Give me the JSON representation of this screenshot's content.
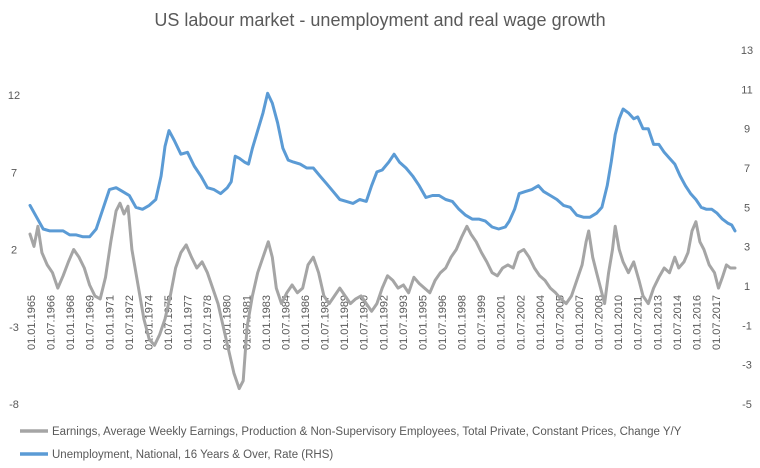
{
  "chart_data": {
    "type": "line",
    "title": "US labour market - unemployment and real wage growth",
    "xlabel": "",
    "ylabel_left": "",
    "ylabel_right": "",
    "x_ticks": [
      "01.01.1965",
      "01.07.1966",
      "01.01.1968",
      "01.07.1969",
      "01.01.1971",
      "01.07.1972",
      "01.01.1974",
      "01.07.1975",
      "01.01.1977",
      "01.07.1978",
      "01.01.1980",
      "01.07.1981",
      "01.01.1983",
      "01.07.1984",
      "01.01.1986",
      "01.07.1987",
      "01.01.1989",
      "01.07.1990",
      "01.01.1992",
      "01.07.1993",
      "01.01.1995",
      "01.07.1996",
      "01.01.1998",
      "01.07.1999",
      "01.01.2001",
      "01.07.2002",
      "01.01.2004",
      "01.07.2005",
      "01.01.2007",
      "01.07.2008",
      "01.01.2010",
      "01.07.2011",
      "01.01.2013",
      "01.07.2014",
      "01.01.2016",
      "01.07.2017"
    ],
    "y_left": {
      "ticks": [
        12,
        7,
        2,
        -3,
        -8
      ],
      "range": [
        -8,
        12
      ]
    },
    "y_right": {
      "ticks": [
        13,
        11,
        9,
        7,
        5,
        3,
        1,
        -1,
        -3,
        -5
      ],
      "range": [
        -5,
        13
      ]
    },
    "x_range": [
      1965.0,
      2018.25
    ],
    "legend_position": "bottom",
    "series": [
      {
        "name": "Earnings, Average Weekly Earnings, Production & Non-Supervisory Employees, Total Private, Constant Prices, Change Y/Y",
        "axis": "left",
        "color": "#a5a5a5",
        "points": [
          [
            1965.0,
            3.0
          ],
          [
            1965.3,
            2.2
          ],
          [
            1965.6,
            3.5
          ],
          [
            1965.9,
            1.8
          ],
          [
            1966.3,
            1.0
          ],
          [
            1966.7,
            0.5
          ],
          [
            1967.1,
            -0.5
          ],
          [
            1967.5,
            0.3
          ],
          [
            1967.9,
            1.2
          ],
          [
            1968.3,
            2.0
          ],
          [
            1968.7,
            1.5
          ],
          [
            1969.1,
            0.8
          ],
          [
            1969.5,
            -0.3
          ],
          [
            1969.9,
            -1.0
          ],
          [
            1970.3,
            -1.2
          ],
          [
            1970.7,
            0.2
          ],
          [
            1971.1,
            2.5
          ],
          [
            1971.5,
            4.5
          ],
          [
            1971.8,
            5.0
          ],
          [
            1972.1,
            4.3
          ],
          [
            1972.4,
            4.8
          ],
          [
            1972.7,
            2.0
          ],
          [
            1973.0,
            0.5
          ],
          [
            1973.3,
            -1.0
          ],
          [
            1973.6,
            -2.5
          ],
          [
            1974.0,
            -3.8
          ],
          [
            1974.4,
            -4.2
          ],
          [
            1974.8,
            -3.5
          ],
          [
            1975.2,
            -2.5
          ],
          [
            1975.6,
            -1.0
          ],
          [
            1976.0,
            0.8
          ],
          [
            1976.4,
            1.8
          ],
          [
            1976.8,
            2.3
          ],
          [
            1977.2,
            1.5
          ],
          [
            1977.6,
            0.8
          ],
          [
            1978.0,
            1.2
          ],
          [
            1978.4,
            0.5
          ],
          [
            1978.8,
            -0.5
          ],
          [
            1979.2,
            -1.5
          ],
          [
            1979.6,
            -3.0
          ],
          [
            1980.0,
            -4.5
          ],
          [
            1980.4,
            -6.0
          ],
          [
            1980.8,
            -7.0
          ],
          [
            1981.1,
            -6.5
          ],
          [
            1981.4,
            -3.0
          ],
          [
            1981.8,
            -1.0
          ],
          [
            1982.2,
            0.5
          ],
          [
            1982.6,
            1.5
          ],
          [
            1983.0,
            2.5
          ],
          [
            1983.3,
            1.5
          ],
          [
            1983.6,
            -0.5
          ],
          [
            1984.0,
            -1.5
          ],
          [
            1984.4,
            -0.8
          ],
          [
            1984.8,
            -0.3
          ],
          [
            1985.2,
            -0.8
          ],
          [
            1985.6,
            -0.5
          ],
          [
            1986.0,
            1.0
          ],
          [
            1986.4,
            1.5
          ],
          [
            1986.8,
            0.5
          ],
          [
            1987.2,
            -1.0
          ],
          [
            1987.6,
            -1.5
          ],
          [
            1988.0,
            -1.0
          ],
          [
            1988.4,
            -0.5
          ],
          [
            1988.8,
            -1.0
          ],
          [
            1989.2,
            -1.5
          ],
          [
            1989.6,
            -1.2
          ],
          [
            1990.0,
            -1.0
          ],
          [
            1990.4,
            -1.5
          ],
          [
            1990.8,
            -2.0
          ],
          [
            1991.2,
            -1.5
          ],
          [
            1991.6,
            -0.5
          ],
          [
            1992.0,
            0.3
          ],
          [
            1992.4,
            0.0
          ],
          [
            1992.8,
            -0.5
          ],
          [
            1993.2,
            -0.3
          ],
          [
            1993.6,
            -0.8
          ],
          [
            1994.0,
            0.2
          ],
          [
            1994.4,
            -0.2
          ],
          [
            1994.8,
            -0.5
          ],
          [
            1995.2,
            -0.8
          ],
          [
            1995.6,
            0.0
          ],
          [
            1996.0,
            0.5
          ],
          [
            1996.4,
            0.8
          ],
          [
            1996.8,
            1.5
          ],
          [
            1997.2,
            2.0
          ],
          [
            1997.6,
            2.8
          ],
          [
            1998.0,
            3.5
          ],
          [
            1998.3,
            3.0
          ],
          [
            1998.7,
            2.5
          ],
          [
            1999.1,
            1.8
          ],
          [
            1999.5,
            1.2
          ],
          [
            1999.9,
            0.5
          ],
          [
            2000.3,
            0.3
          ],
          [
            2000.7,
            0.8
          ],
          [
            2001.1,
            1.0
          ],
          [
            2001.5,
            0.8
          ],
          [
            2001.9,
            1.8
          ],
          [
            2002.3,
            2.0
          ],
          [
            2002.7,
            1.5
          ],
          [
            2003.1,
            0.8
          ],
          [
            2003.5,
            0.3
          ],
          [
            2003.9,
            0.0
          ],
          [
            2004.3,
            -0.5
          ],
          [
            2004.7,
            -0.8
          ],
          [
            2005.1,
            -1.2
          ],
          [
            2005.5,
            -1.5
          ],
          [
            2005.9,
            -1.0
          ],
          [
            2006.3,
            0.0
          ],
          [
            2006.7,
            1.0
          ],
          [
            2007.0,
            2.5
          ],
          [
            2007.2,
            3.2
          ],
          [
            2007.5,
            1.5
          ],
          [
            2007.8,
            0.5
          ],
          [
            2008.1,
            -0.5
          ],
          [
            2008.4,
            -1.5
          ],
          [
            2008.7,
            0.5
          ],
          [
            2009.0,
            2.0
          ],
          [
            2009.2,
            3.5
          ],
          [
            2009.5,
            2.0
          ],
          [
            2009.8,
            1.2
          ],
          [
            2010.2,
            0.5
          ],
          [
            2010.6,
            1.2
          ],
          [
            2011.0,
            0.0
          ],
          [
            2011.3,
            -1.0
          ],
          [
            2011.7,
            -1.5
          ],
          [
            2012.1,
            -0.5
          ],
          [
            2012.5,
            0.2
          ],
          [
            2012.9,
            0.8
          ],
          [
            2013.3,
            0.5
          ],
          [
            2013.7,
            1.5
          ],
          [
            2014.0,
            0.8
          ],
          [
            2014.4,
            1.2
          ],
          [
            2014.7,
            1.8
          ],
          [
            2015.0,
            3.2
          ],
          [
            2015.3,
            3.8
          ],
          [
            2015.6,
            2.5
          ],
          [
            2015.9,
            2.0
          ],
          [
            2016.3,
            1.0
          ],
          [
            2016.7,
            0.5
          ],
          [
            2017.0,
            -0.5
          ],
          [
            2017.3,
            0.2
          ],
          [
            2017.6,
            1.0
          ],
          [
            2017.9,
            0.8
          ],
          [
            2018.25,
            0.8
          ]
        ]
      },
      {
        "name": "Unemployment, National, 16 Years & Over, Rate (RHS)",
        "axis": "right",
        "color": "#5b9bd5",
        "points": [
          [
            1965.0,
            5.1
          ],
          [
            1965.5,
            4.5
          ],
          [
            1966.0,
            3.9
          ],
          [
            1966.5,
            3.8
          ],
          [
            1967.0,
            3.8
          ],
          [
            1967.5,
            3.8
          ],
          [
            1968.0,
            3.6
          ],
          [
            1968.5,
            3.6
          ],
          [
            1969.0,
            3.5
          ],
          [
            1969.5,
            3.5
          ],
          [
            1970.0,
            3.9
          ],
          [
            1970.5,
            4.9
          ],
          [
            1971.0,
            5.9
          ],
          [
            1971.5,
            6.0
          ],
          [
            1972.0,
            5.8
          ],
          [
            1972.5,
            5.6
          ],
          [
            1973.0,
            5.0
          ],
          [
            1973.5,
            4.9
          ],
          [
            1974.0,
            5.1
          ],
          [
            1974.5,
            5.4
          ],
          [
            1974.9,
            6.6
          ],
          [
            1975.2,
            8.1
          ],
          [
            1975.5,
            8.9
          ],
          [
            1975.9,
            8.4
          ],
          [
            1976.4,
            7.7
          ],
          [
            1976.9,
            7.8
          ],
          [
            1977.4,
            7.1
          ],
          [
            1977.9,
            6.6
          ],
          [
            1978.4,
            6.0
          ],
          [
            1978.9,
            5.9
          ],
          [
            1979.4,
            5.7
          ],
          [
            1979.9,
            6.0
          ],
          [
            1980.2,
            6.3
          ],
          [
            1980.5,
            7.6
          ],
          [
            1980.8,
            7.5
          ],
          [
            1981.2,
            7.3
          ],
          [
            1981.5,
            7.2
          ],
          [
            1981.8,
            8.0
          ],
          [
            1982.2,
            8.9
          ],
          [
            1982.6,
            9.8
          ],
          [
            1982.95,
            10.8
          ],
          [
            1983.3,
            10.3
          ],
          [
            1983.7,
            9.3
          ],
          [
            1984.1,
            8.0
          ],
          [
            1984.5,
            7.4
          ],
          [
            1984.9,
            7.3
          ],
          [
            1985.4,
            7.2
          ],
          [
            1985.9,
            7.0
          ],
          [
            1986.4,
            7.0
          ],
          [
            1986.9,
            6.6
          ],
          [
            1987.4,
            6.2
          ],
          [
            1987.9,
            5.8
          ],
          [
            1988.4,
            5.4
          ],
          [
            1988.9,
            5.3
          ],
          [
            1989.4,
            5.2
          ],
          [
            1989.9,
            5.4
          ],
          [
            1990.4,
            5.3
          ],
          [
            1990.8,
            6.1
          ],
          [
            1991.2,
            6.8
          ],
          [
            1991.6,
            6.9
          ],
          [
            1992.1,
            7.3
          ],
          [
            1992.5,
            7.7
          ],
          [
            1992.9,
            7.3
          ],
          [
            1993.4,
            7.0
          ],
          [
            1993.9,
            6.6
          ],
          [
            1994.4,
            6.1
          ],
          [
            1994.9,
            5.5
          ],
          [
            1995.4,
            5.6
          ],
          [
            1995.9,
            5.6
          ],
          [
            1996.4,
            5.4
          ],
          [
            1996.9,
            5.3
          ],
          [
            1997.4,
            4.9
          ],
          [
            1997.9,
            4.6
          ],
          [
            1998.4,
            4.4
          ],
          [
            1998.9,
            4.4
          ],
          [
            1999.4,
            4.3
          ],
          [
            1999.9,
            4.0
          ],
          [
            2000.4,
            3.9
          ],
          [
            2000.9,
            4.0
          ],
          [
            2001.2,
            4.3
          ],
          [
            2001.6,
            4.9
          ],
          [
            2001.95,
            5.7
          ],
          [
            2002.4,
            5.8
          ],
          [
            2002.9,
            5.9
          ],
          [
            2003.4,
            6.1
          ],
          [
            2003.8,
            5.8
          ],
          [
            2004.3,
            5.6
          ],
          [
            2004.8,
            5.4
          ],
          [
            2005.3,
            5.1
          ],
          [
            2005.8,
            5.0
          ],
          [
            2006.3,
            4.6
          ],
          [
            2006.8,
            4.5
          ],
          [
            2007.3,
            4.5
          ],
          [
            2007.8,
            4.7
          ],
          [
            2008.2,
            5.0
          ],
          [
            2008.6,
            6.1
          ],
          [
            2008.9,
            7.3
          ],
          [
            2009.2,
            8.7
          ],
          [
            2009.5,
            9.5
          ],
          [
            2009.8,
            10.0
          ],
          [
            2010.2,
            9.8
          ],
          [
            2010.6,
            9.5
          ],
          [
            2010.9,
            9.6
          ],
          [
            2011.3,
            9.0
          ],
          [
            2011.7,
            9.0
          ],
          [
            2012.1,
            8.2
          ],
          [
            2012.5,
            8.2
          ],
          [
            2012.9,
            7.8
          ],
          [
            2013.3,
            7.5
          ],
          [
            2013.7,
            7.2
          ],
          [
            2014.1,
            6.6
          ],
          [
            2014.5,
            6.1
          ],
          [
            2014.9,
            5.7
          ],
          [
            2015.3,
            5.4
          ],
          [
            2015.7,
            5.0
          ],
          [
            2016.1,
            4.9
          ],
          [
            2016.5,
            4.9
          ],
          [
            2016.9,
            4.7
          ],
          [
            2017.3,
            4.4
          ],
          [
            2017.7,
            4.2
          ],
          [
            2018.0,
            4.1
          ],
          [
            2018.25,
            3.8
          ]
        ]
      }
    ]
  }
}
